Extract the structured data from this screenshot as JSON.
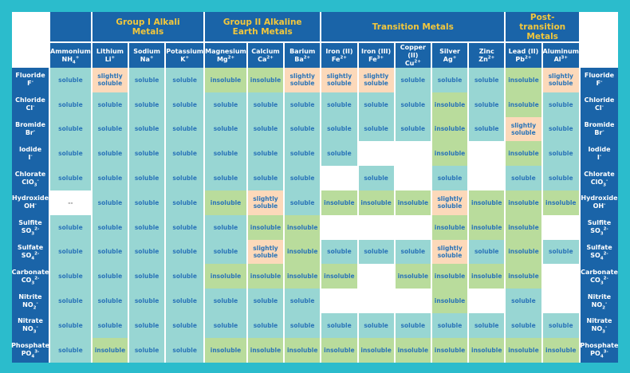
{
  "colors": {
    "soluble": "#98d6d3",
    "insoluble": "#b9dc9c",
    "slightly soluble": "#fcd9ba",
    "": "#ffffff",
    "--": "#ffffff",
    "header": "#1a64a8",
    "group_text": "#f2c73c",
    "background": "#2bbccc"
  },
  "groups": [
    {
      "label": "",
      "span": 1
    },
    {
      "label": "Group I Alkali Metals",
      "span": 3
    },
    {
      "label": "Group II Alkaline Earth Metals",
      "span": 3
    },
    {
      "label": "Transition Metals",
      "span": 5
    },
    {
      "label": "Post-transition Metals",
      "span": 2
    }
  ],
  "cations": [
    {
      "name": "Ammonium",
      "symbol": "NH",
      "sub": "4",
      "sup": "+"
    },
    {
      "name": "Lithium",
      "symbol": "Li",
      "sub": "",
      "sup": "+"
    },
    {
      "name": "Sodium",
      "symbol": "Na",
      "sub": "",
      "sup": "+"
    },
    {
      "name": "Potassium",
      "symbol": "K",
      "sub": "",
      "sup": "+"
    },
    {
      "name": "Magnesium",
      "symbol": "Mg",
      "sub": "",
      "sup": "2+"
    },
    {
      "name": "Calcium",
      "symbol": "Ca",
      "sub": "",
      "sup": "2+"
    },
    {
      "name": "Barium",
      "symbol": "Ba",
      "sub": "",
      "sup": "2+"
    },
    {
      "name": "Iron (II)",
      "symbol": "Fe",
      "sub": "",
      "sup": "2+"
    },
    {
      "name": "Iron (III)",
      "symbol": "Fe",
      "sub": "",
      "sup": "3+"
    },
    {
      "name": "Copper (II)",
      "symbol": "Cu",
      "sub": "",
      "sup": "2+"
    },
    {
      "name": "Silver",
      "symbol": "Ag",
      "sub": "",
      "sup": "+"
    },
    {
      "name": "Zinc",
      "symbol": "Zn",
      "sub": "",
      "sup": "2+"
    },
    {
      "name": "Lead (II)",
      "symbol": "Pb",
      "sub": "",
      "sup": "2+"
    },
    {
      "name": "Aluminum",
      "symbol": "Al",
      "sub": "",
      "sup": "3+"
    }
  ],
  "anions": [
    {
      "name": "Fluoride",
      "symbol": "F",
      "sub": "",
      "sup": "-",
      "values": [
        "soluble",
        "slightly soluble",
        "soluble",
        "soluble",
        "insoluble",
        "insoluble",
        "slightly soluble",
        "slightly soluble",
        "slightly soluble",
        "soluble",
        "soluble",
        "soluble",
        "insoluble",
        "slightly soluble"
      ]
    },
    {
      "name": "Chloride",
      "symbol": "Cl",
      "sub": "",
      "sup": "-",
      "values": [
        "soluble",
        "soluble",
        "soluble",
        "soluble",
        "soluble",
        "soluble",
        "soluble",
        "soluble",
        "soluble",
        "soluble",
        "insoluble",
        "soluble",
        "insoluble",
        "soluble"
      ]
    },
    {
      "name": "Bromide",
      "symbol": "Br",
      "sub": "",
      "sup": "-",
      "values": [
        "soluble",
        "soluble",
        "soluble",
        "soluble",
        "soluble",
        "soluble",
        "soluble",
        "soluble",
        "soluble",
        "soluble",
        "insoluble",
        "soluble",
        "slightly soluble",
        "soluble"
      ]
    },
    {
      "name": "Iodide",
      "symbol": "I",
      "sub": "",
      "sup": "-",
      "values": [
        "soluble",
        "soluble",
        "soluble",
        "soluble",
        "soluble",
        "soluble",
        "soluble",
        "soluble",
        "",
        "",
        "insoluble",
        "",
        "insoluble",
        "soluble"
      ]
    },
    {
      "name": "Chlorate",
      "symbol": "ClO",
      "sub": "3",
      "sup": "-",
      "values": [
        "soluble",
        "soluble",
        "soluble",
        "soluble",
        "soluble",
        "soluble",
        "soluble",
        "",
        "soluble",
        "",
        "soluble",
        "",
        "soluble",
        "soluble"
      ]
    },
    {
      "name": "Hydroxide",
      "symbol": "OH",
      "sub": "",
      "sup": "-",
      "values": [
        "--",
        "soluble",
        "soluble",
        "soluble",
        "insoluble",
        "slightly soluble",
        "soluble",
        "insoluble",
        "insoluble",
        "insoluble",
        "slightly soluble",
        "insoluble",
        "insoluble",
        "insoluble"
      ]
    },
    {
      "name": "Sulfite",
      "symbol": "SO",
      "sub": "3",
      "sup": "2-",
      "values": [
        "soluble",
        "soluble",
        "soluble",
        "soluble",
        "soluble",
        "insoluble",
        "insoluble",
        "",
        "",
        "",
        "insoluble",
        "insoluble",
        "insoluble",
        ""
      ]
    },
    {
      "name": "Sulfate",
      "symbol": "SO",
      "sub": "4",
      "sup": "2-",
      "values": [
        "soluble",
        "soluble",
        "soluble",
        "soluble",
        "soluble",
        "slightly soluble",
        "insoluble",
        "soluble",
        "soluble",
        "soluble",
        "slightly soluble",
        "soluble",
        "insoluble",
        "soluble"
      ]
    },
    {
      "name": "Carbonate",
      "symbol": "CO",
      "sub": "3",
      "sup": "2-",
      "values": [
        "soluble",
        "soluble",
        "soluble",
        "soluble",
        "insoluble",
        "insoluble",
        "insoluble",
        "insoluble",
        "",
        "insoluble",
        "insoluble",
        "insoluble",
        "insoluble",
        ""
      ]
    },
    {
      "name": "Nitrite",
      "symbol": "NO",
      "sub": "2",
      "sup": "-",
      "values": [
        "soluble",
        "soluble",
        "soluble",
        "soluble",
        "soluble",
        "soluble",
        "soluble",
        "",
        "",
        "",
        "insoluble",
        "",
        "soluble",
        ""
      ]
    },
    {
      "name": "Nitrate",
      "symbol": "NO",
      "sub": "3",
      "sup": "-",
      "values": [
        "soluble",
        "soluble",
        "soluble",
        "soluble",
        "soluble",
        "soluble",
        "soluble",
        "soluble",
        "soluble",
        "soluble",
        "soluble",
        "soluble",
        "soluble",
        "soluble"
      ]
    },
    {
      "name": "Phosphate",
      "symbol": "PO",
      "sub": "4",
      "sup": "3-",
      "values": [
        "soluble",
        "insoluble",
        "soluble",
        "soluble",
        "insoluble",
        "insoluble",
        "insoluble",
        "insoluble",
        "insoluble",
        "insoluble",
        "insoluble",
        "insoluble",
        "insoluble",
        "insoluble"
      ]
    }
  ]
}
